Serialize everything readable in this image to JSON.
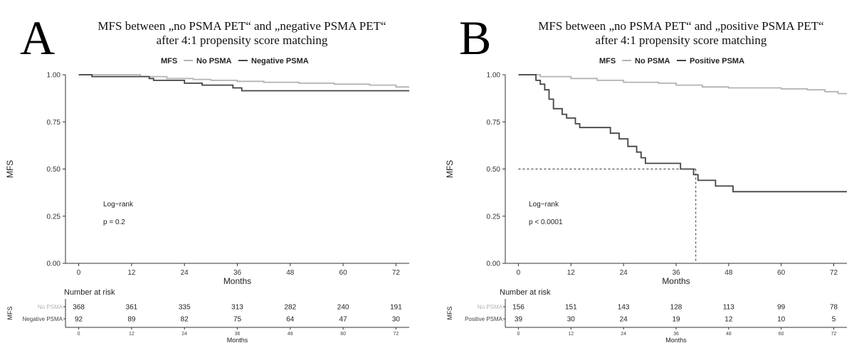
{
  "panels": [
    {
      "letter": "A",
      "title_line1": "MFS between „no PSMA PET“ and „negative PSMA PET“",
      "title_line2": "after 4:1 propensity score matching",
      "legend_title": "MFS",
      "legend_items": [
        {
          "label": "No PSMA",
          "color": "#b3b3b3"
        },
        {
          "label": "Negative PSMA",
          "color": "#444444"
        }
      ],
      "annotation_title": "Log−rank",
      "annotation_p": "p = 0.2",
      "risk_table": {
        "title": "Number at risk",
        "ylabel": "MFS",
        "xlabel": "Months",
        "rows": [
          {
            "label": "No PSMA",
            "color": "#b3b3b3",
            "values": [
              "368",
              "361",
              "335",
              "313",
              "282",
              "240",
              "191"
            ]
          },
          {
            "label": "Negative PSMA",
            "color": "#444444",
            "values": [
              "92",
              "89",
              "82",
              "75",
              "64",
              "47",
              "30"
            ]
          }
        ]
      },
      "chart_data": {
        "type": "line",
        "xlabel": "Months",
        "ylabel": "MFS",
        "xlim": [
          -3,
          75
        ],
        "ylim": [
          0,
          1
        ],
        "xticks": [
          "0",
          "12",
          "24",
          "36",
          "48",
          "60",
          "72"
        ],
        "yticks": [
          "0.00",
          "0.25",
          "0.50",
          "0.75",
          "1.00"
        ],
        "series": [
          {
            "name": "No PSMA",
            "color": "#b3b3b3",
            "width": 1.8,
            "points": [
              [
                0,
                1.0
              ],
              [
                14,
                1.0
              ],
              [
                14,
                0.99
              ],
              [
                20,
                0.99
              ],
              [
                20,
                0.98
              ],
              [
                26,
                0.98
              ],
              [
                26,
                0.975
              ],
              [
                30,
                0.975
              ],
              [
                30,
                0.97
              ],
              [
                36,
                0.97
              ],
              [
                36,
                0.965
              ],
              [
                42,
                0.965
              ],
              [
                42,
                0.96
              ],
              [
                50,
                0.96
              ],
              [
                50,
                0.955
              ],
              [
                58,
                0.955
              ],
              [
                58,
                0.95
              ],
              [
                66,
                0.95
              ],
              [
                66,
                0.945
              ],
              [
                72,
                0.945
              ],
              [
                72,
                0.935
              ],
              [
                75,
                0.935
              ]
            ]
          },
          {
            "name": "Negative PSMA",
            "color": "#444444",
            "width": 1.8,
            "points": [
              [
                0,
                1.0
              ],
              [
                3,
                1.0
              ],
              [
                3,
                0.99
              ],
              [
                16,
                0.99
              ],
              [
                16,
                0.98
              ],
              [
                17,
                0.98
              ],
              [
                17,
                0.97
              ],
              [
                24,
                0.97
              ],
              [
                24,
                0.955
              ],
              [
                28,
                0.955
              ],
              [
                28,
                0.945
              ],
              [
                35,
                0.945
              ],
              [
                35,
                0.93
              ],
              [
                37,
                0.93
              ],
              [
                37,
                0.915
              ],
              [
                75,
                0.915
              ]
            ]
          }
        ]
      }
    },
    {
      "letter": "B",
      "title_line1": "MFS between „no PSMA PET“ and „positive PSMA PET“",
      "title_line2": "after 4:1 propensity score matching",
      "legend_title": "MFS",
      "legend_items": [
        {
          "label": "No PSMA",
          "color": "#b3b3b3"
        },
        {
          "label": "Positive PSMA",
          "color": "#444444"
        }
      ],
      "annotation_title": "Log−rank",
      "annotation_p": "p < 0.0001",
      "risk_table": {
        "title": "Number at risk",
        "ylabel": "MFS",
        "xlabel": "Months",
        "rows": [
          {
            "label": "No PSMA",
            "color": "#b3b3b3",
            "values": [
              "156",
              "151",
              "143",
              "128",
              "113",
              "99",
              "78"
            ]
          },
          {
            "label": "Positive PSMA",
            "color": "#444444",
            "values": [
              "39",
              "30",
              "24",
              "19",
              "12",
              "10",
              "5"
            ]
          }
        ]
      },
      "chart_data": {
        "type": "line",
        "xlabel": "Months",
        "ylabel": "MFS",
        "xlim": [
          -3,
          75
        ],
        "ylim": [
          0,
          1
        ],
        "xticks": [
          "0",
          "12",
          "24",
          "36",
          "48",
          "60",
          "72"
        ],
        "yticks": [
          "0.00",
          "0.25",
          "0.50",
          "0.75",
          "1.00"
        ],
        "median_line": {
          "x": 40.5,
          "y": 0.5
        },
        "series": [
          {
            "name": "No PSMA",
            "color": "#b3b3b3",
            "width": 1.8,
            "points": [
              [
                0,
                1.0
              ],
              [
                5,
                1.0
              ],
              [
                5,
                0.99
              ],
              [
                12,
                0.99
              ],
              [
                12,
                0.98
              ],
              [
                18,
                0.98
              ],
              [
                18,
                0.97
              ],
              [
                24,
                0.97
              ],
              [
                24,
                0.96
              ],
              [
                32,
                0.96
              ],
              [
                32,
                0.955
              ],
              [
                36,
                0.955
              ],
              [
                36,
                0.945
              ],
              [
                42,
                0.945
              ],
              [
                42,
                0.935
              ],
              [
                48,
                0.935
              ],
              [
                48,
                0.93
              ],
              [
                60,
                0.93
              ],
              [
                60,
                0.925
              ],
              [
                66,
                0.925
              ],
              [
                66,
                0.92
              ],
              [
                70,
                0.92
              ],
              [
                70,
                0.91
              ],
              [
                73,
                0.91
              ],
              [
                73,
                0.9
              ],
              [
                75,
                0.9
              ]
            ]
          },
          {
            "name": "Positive PSMA",
            "color": "#444444",
            "width": 1.8,
            "points": [
              [
                0,
                1.0
              ],
              [
                4,
                1.0
              ],
              [
                4,
                0.97
              ],
              [
                5,
                0.97
              ],
              [
                5,
                0.95
              ],
              [
                6,
                0.95
              ],
              [
                6,
                0.92
              ],
              [
                7,
                0.92
              ],
              [
                7,
                0.87
              ],
              [
                8,
                0.87
              ],
              [
                8,
                0.82
              ],
              [
                10,
                0.82
              ],
              [
                10,
                0.79
              ],
              [
                11,
                0.79
              ],
              [
                11,
                0.77
              ],
              [
                13,
                0.77
              ],
              [
                13,
                0.74
              ],
              [
                14,
                0.74
              ],
              [
                14,
                0.72
              ],
              [
                21,
                0.72
              ],
              [
                21,
                0.69
              ],
              [
                23,
                0.69
              ],
              [
                23,
                0.66
              ],
              [
                25,
                0.66
              ],
              [
                25,
                0.62
              ],
              [
                27,
                0.62
              ],
              [
                27,
                0.59
              ],
              [
                28,
                0.59
              ],
              [
                28,
                0.56
              ],
              [
                29,
                0.56
              ],
              [
                29,
                0.53
              ],
              [
                37,
                0.53
              ],
              [
                37,
                0.5
              ],
              [
                40,
                0.5
              ],
              [
                40,
                0.47
              ],
              [
                41,
                0.47
              ],
              [
                41,
                0.44
              ],
              [
                45,
                0.44
              ],
              [
                45,
                0.41
              ],
              [
                49,
                0.41
              ],
              [
                49,
                0.38
              ],
              [
                75,
                0.38
              ]
            ]
          }
        ]
      }
    }
  ]
}
